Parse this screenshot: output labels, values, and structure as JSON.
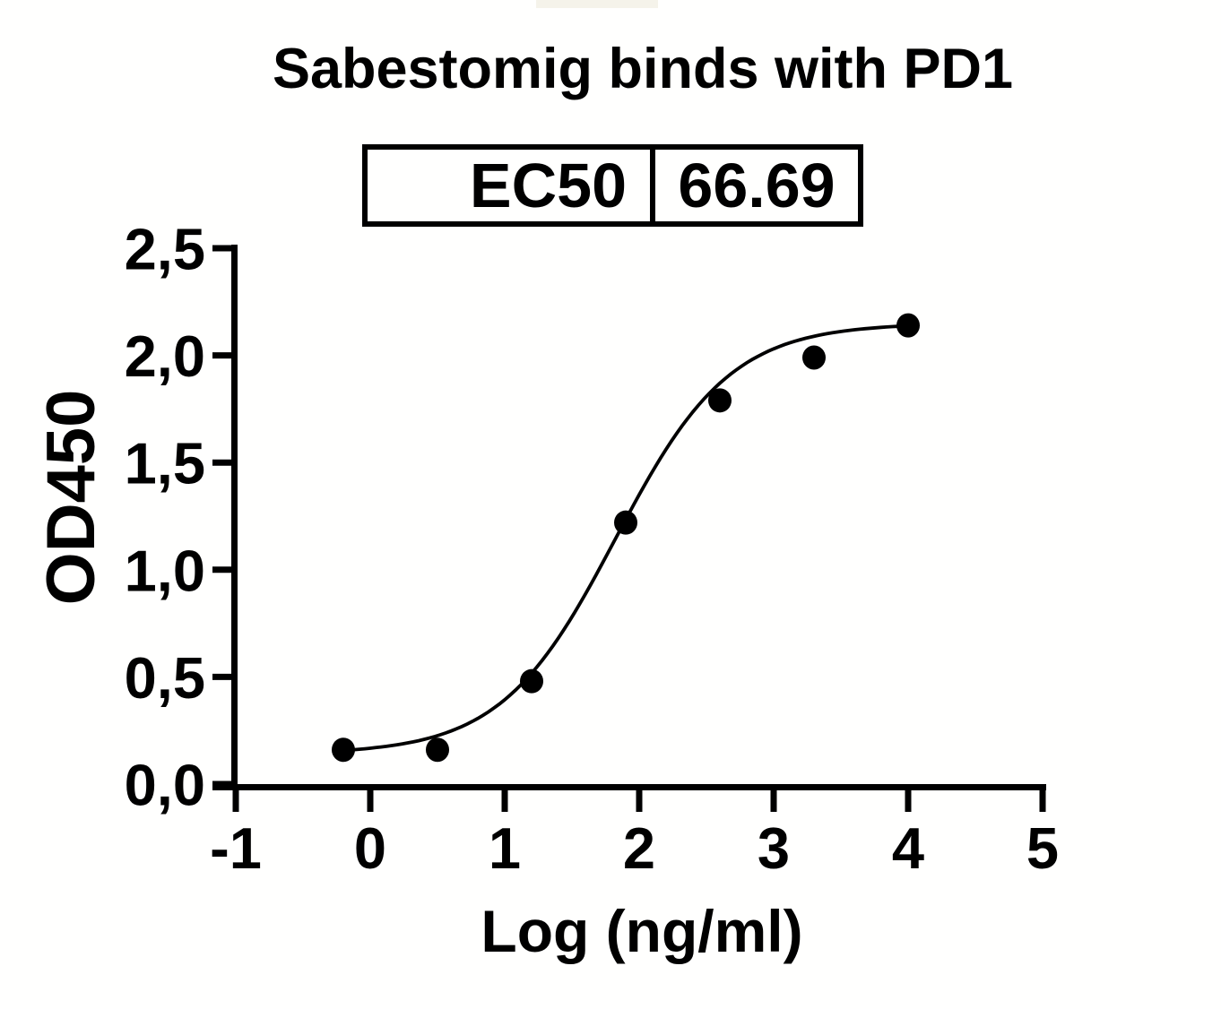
{
  "title": "Sabestomig binds with PD1",
  "ec50_table": {
    "label": "EC50",
    "value": "66.69"
  },
  "chart_data": {
    "type": "scatter",
    "title": "Sabestomig binds with PD1",
    "xlabel": "Log (ng/ml)",
    "ylabel": "OD450",
    "xlim": [
      -1,
      5
    ],
    "ylim": [
      0,
      2.5
    ],
    "x_ticks": [
      -1,
      0,
      1,
      2,
      3,
      4,
      5
    ],
    "x_tick_labels": [
      "-1",
      "0",
      "1",
      "2",
      "3",
      "4",
      "5"
    ],
    "y_ticks": [
      0,
      0.5,
      1.0,
      1.5,
      2.0,
      2.5
    ],
    "y_tick_labels": [
      "0,0",
      "0,5",
      "1,0",
      "1,5",
      "2,0",
      "2,5"
    ],
    "grid": false,
    "legend": false,
    "points": [
      {
        "x": -0.2,
        "y": 0.16
      },
      {
        "x": 0.5,
        "y": 0.16
      },
      {
        "x": 1.2,
        "y": 0.48
      },
      {
        "x": 1.9,
        "y": 1.22
      },
      {
        "x": 2.6,
        "y": 1.79
      },
      {
        "x": 3.3,
        "y": 1.99
      },
      {
        "x": 4.0,
        "y": 2.14
      }
    ],
    "fit_curve": {
      "model": "4PL",
      "bottom": 0.14,
      "top": 2.15,
      "log_ec50": 1.824,
      "hill_slope": 1.02,
      "x_start": -0.2,
      "x_end": 4.0
    },
    "ec50": 66.69,
    "colors": {
      "ink": "#000000",
      "background": "#fffffe"
    }
  }
}
